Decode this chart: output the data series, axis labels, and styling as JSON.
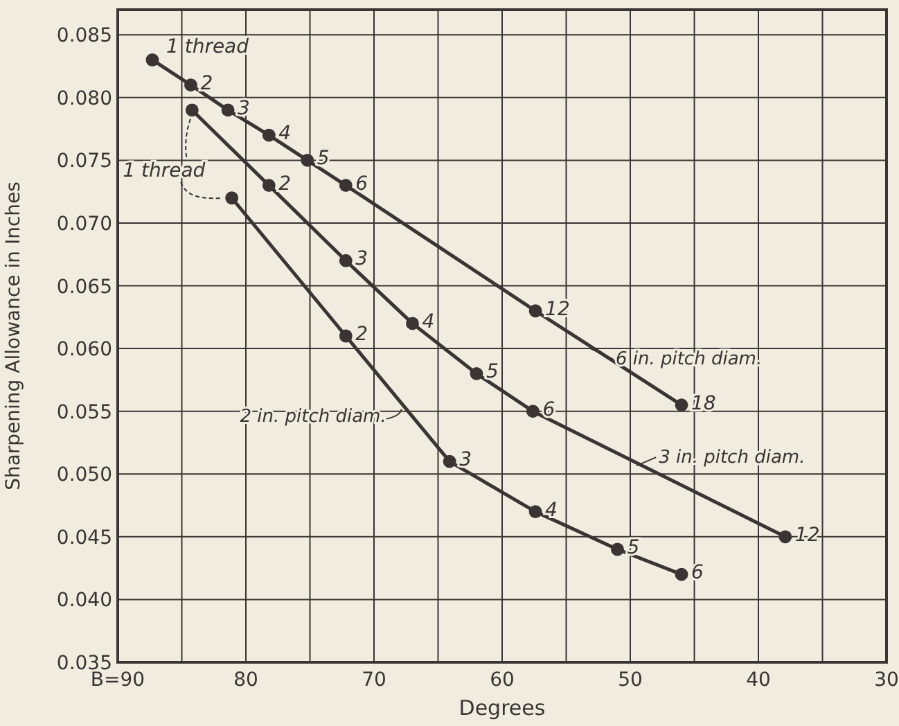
{
  "chart_data": {
    "type": "line",
    "xlabel": "Degrees",
    "ylabel": "Sharpening Allowance in Inches",
    "xlim": [
      90,
      30
    ],
    "ylim": [
      0.035,
      0.087
    ],
    "xticks": [
      {
        "value": 90,
        "label": "B=90"
      },
      {
        "value": 85,
        "label": null
      },
      80,
      {
        "value": 75,
        "label": null
      },
      70,
      {
        "value": 65,
        "label": null
      },
      60,
      {
        "value": 55,
        "label": null
      },
      50,
      {
        "value": 45,
        "label": null
      },
      40,
      {
        "value": 35,
        "label": null
      },
      30
    ],
    "yticks": [
      {
        "value": 0.035,
        "label": "0.035"
      },
      {
        "value": 0.04,
        "label": "0.040"
      },
      {
        "value": 0.045,
        "label": "0.045"
      },
      {
        "value": 0.05,
        "label": "0.050"
      },
      {
        "value": 0.055,
        "label": "0.055"
      },
      {
        "value": 0.06,
        "label": "0.060"
      },
      {
        "value": 0.065,
        "label": "0.065"
      },
      {
        "value": 0.07,
        "label": "0.070"
      },
      {
        "value": 0.075,
        "label": "0.075"
      },
      {
        "value": 0.08,
        "label": "0.080"
      },
      {
        "value": 0.085,
        "label": "0.085"
      }
    ],
    "grid": true,
    "marker": "circle",
    "line_style": "solid",
    "legend": "right",
    "series": [
      {
        "name": "6 in. pitch diam.",
        "color": "#3a3433",
        "x": [
          87.3,
          84.3,
          81.4,
          78.2,
          75.2,
          72.2,
          57.4,
          46.0
        ],
        "values": [
          0.083,
          0.081,
          0.079,
          0.077,
          0.075,
          0.073,
          0.063,
          0.0555
        ]
      },
      {
        "name": "3 in. pitch diam.",
        "color": "#3a3433",
        "x": [
          84.2,
          78.2,
          72.2,
          67.0,
          62.0,
          57.6,
          37.9
        ],
        "values": [
          0.079,
          0.073,
          0.067,
          0.062,
          0.058,
          0.055,
          0.045
        ]
      },
      {
        "name": "2 in. pitch diam.",
        "color": "#3a3433",
        "x": [
          81.1,
          72.2,
          64.1,
          57.4,
          51.0,
          46.0
        ],
        "values": [
          0.072,
          0.061,
          0.051,
          0.047,
          0.044,
          0.042
        ]
      }
    ],
    "annotations": [
      {
        "text": "1 thread",
        "x": 87.3,
        "y": 0.083
      },
      {
        "text": "2",
        "x": 84.3,
        "y": 0.081
      },
      {
        "text": "3",
        "x": 81.4,
        "y": 0.079
      },
      {
        "text": "4",
        "x": 78.2,
        "y": 0.077
      },
      {
        "text": "5",
        "x": 75.2,
        "y": 0.075
      },
      {
        "text": "6",
        "x": 72.2,
        "y": 0.073
      },
      {
        "text": "12",
        "x": 57.4,
        "y": 0.063
      },
      {
        "text": "18",
        "x": 46.0,
        "y": 0.0555
      },
      {
        "text": "1 thread",
        "x": 84.2,
        "y": 0.079
      },
      {
        "text": "2",
        "x": 78.2,
        "y": 0.073
      },
      {
        "text": "3",
        "x": 72.2,
        "y": 0.067
      },
      {
        "text": "4",
        "x": 67.0,
        "y": 0.062
      },
      {
        "text": "5",
        "x": 62.0,
        "y": 0.058
      },
      {
        "text": "6",
        "x": 57.6,
        "y": 0.055
      },
      {
        "text": "12",
        "x": 37.9,
        "y": 0.045
      },
      {
        "text": "2",
        "x": 72.2,
        "y": 0.061
      },
      {
        "text": "3",
        "x": 64.1,
        "y": 0.051
      },
      {
        "text": "4",
        "x": 57.4,
        "y": 0.047
      },
      {
        "text": "5",
        "x": 51.0,
        "y": 0.044
      },
      {
        "text": "6",
        "x": 46.0,
        "y": 0.042
      }
    ]
  }
}
